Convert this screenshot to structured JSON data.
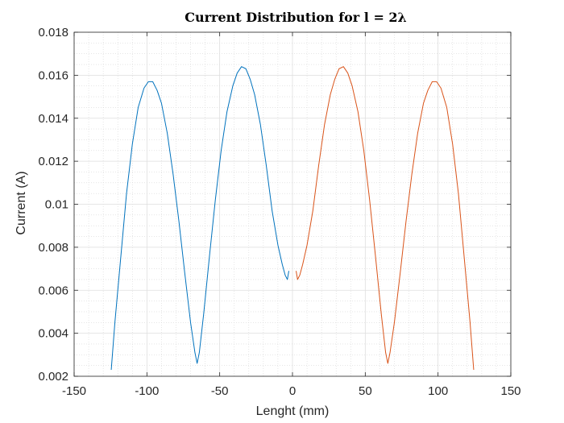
{
  "chart_data": {
    "type": "line",
    "title": "Current Distribution for l = 2λ",
    "xlabel": "Lenght (mm)",
    "ylabel": "Current (A)",
    "xlim": [
      -150,
      150
    ],
    "ylim": [
      0.002,
      0.018
    ],
    "xticks": [
      -150,
      -100,
      -50,
      0,
      50,
      100,
      150
    ],
    "xtick_labels": [
      "-150",
      "-100",
      "-50",
      "0",
      "50",
      "100",
      "150"
    ],
    "yticks": [
      0.002,
      0.004,
      0.006,
      0.008,
      0.01,
      0.012,
      0.014,
      0.016,
      0.018
    ],
    "ytick_labels": [
      "0.002",
      "0.004",
      "0.006",
      "0.008",
      "0.01",
      "0.012",
      "0.014",
      "0.016",
      "0.018"
    ],
    "grid": true,
    "minor_grid": true,
    "series": [
      {
        "color": "#0072BD",
        "x": [
          -124.5,
          -122,
          -118,
          -114,
          -110,
          -106,
          -102,
          -99,
          -96,
          -93,
          -90,
          -86,
          -82,
          -78,
          -74,
          -70,
          -67,
          -65.5,
          -64,
          -61,
          -57,
          -53,
          -49,
          -45,
          -41,
          -38,
          -35,
          -32,
          -29,
          -26,
          -22,
          -18,
          -14,
          -10,
          -7,
          -5,
          -3.5,
          -2.5
        ],
        "y": [
          0.0023,
          0.0045,
          0.0075,
          0.0105,
          0.0128,
          0.0145,
          0.0154,
          0.0157,
          0.0157,
          0.0153,
          0.0147,
          0.0133,
          0.0114,
          0.0092,
          0.0068,
          0.0045,
          0.0031,
          0.0026,
          0.0031,
          0.0049,
          0.0076,
          0.0102,
          0.0125,
          0.0143,
          0.0155,
          0.0161,
          0.0164,
          0.0163,
          0.0158,
          0.0151,
          0.0137,
          0.0118,
          0.0097,
          0.0081,
          0.0072,
          0.0067,
          0.0065,
          0.0069
        ]
      },
      {
        "color": "#D95319",
        "x": [
          2.5,
          3.5,
          5,
          7,
          10,
          14,
          18,
          22,
          26,
          29,
          32,
          35,
          38,
          41,
          45,
          49,
          53,
          57,
          61,
          64,
          65.5,
          67,
          70,
          74,
          78,
          82,
          86,
          90,
          93,
          96,
          99,
          102,
          106,
          110,
          114,
          118,
          122,
          124.5
        ],
        "y": [
          0.0069,
          0.0065,
          0.0067,
          0.0072,
          0.0081,
          0.0097,
          0.0118,
          0.0137,
          0.0151,
          0.0158,
          0.0163,
          0.0164,
          0.0161,
          0.0155,
          0.0143,
          0.0125,
          0.0102,
          0.0076,
          0.0049,
          0.0031,
          0.0026,
          0.0031,
          0.0045,
          0.0068,
          0.0092,
          0.0114,
          0.0133,
          0.0147,
          0.0153,
          0.0157,
          0.0157,
          0.0154,
          0.0145,
          0.0128,
          0.0105,
          0.0075,
          0.0045,
          0.0023
        ]
      }
    ]
  }
}
